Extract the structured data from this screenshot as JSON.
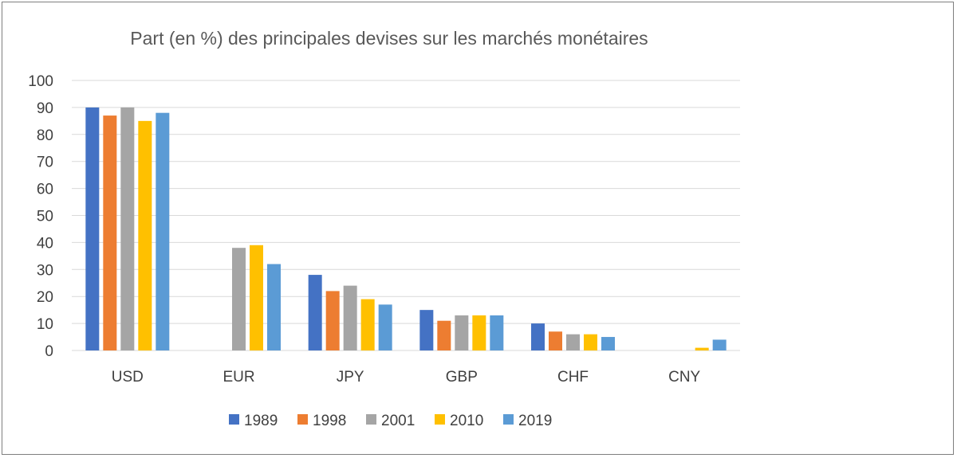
{
  "chart_data": {
    "type": "bar",
    "title": "Part (en %) des principales devises sur les marchés monétaires",
    "categories": [
      "USD",
      "EUR",
      "JPY",
      "GBP",
      "CHF",
      "CNY"
    ],
    "ylim": [
      0,
      100
    ],
    "yticks": [
      0,
      10,
      20,
      30,
      40,
      50,
      60,
      70,
      80,
      90,
      100
    ],
    "grid": true,
    "legend_position": "bottom",
    "series": [
      {
        "name": "1989",
        "color": "#4472c4",
        "values": [
          90,
          null,
          28,
          15,
          10,
          null
        ]
      },
      {
        "name": "1998",
        "color": "#ed7d31",
        "values": [
          87,
          null,
          22,
          11,
          7,
          null
        ]
      },
      {
        "name": "2001",
        "color": "#a5a5a5",
        "values": [
          90,
          38,
          24,
          13,
          6,
          null
        ]
      },
      {
        "name": "2010",
        "color": "#ffc000",
        "values": [
          85,
          39,
          19,
          13,
          6,
          1
        ]
      },
      {
        "name": "2019",
        "color": "#5b9bd5",
        "values": [
          88,
          32,
          17,
          13,
          5,
          4
        ]
      }
    ]
  }
}
